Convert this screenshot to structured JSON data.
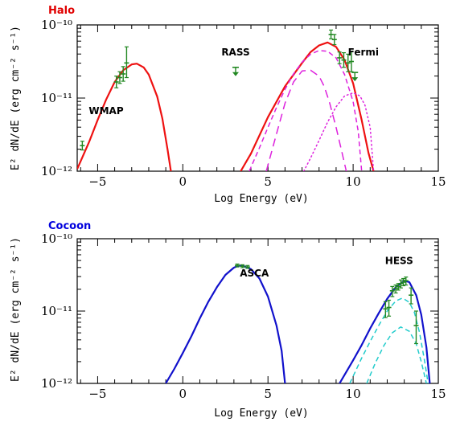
{
  "chart_data": [
    {
      "panel": "halo",
      "type": "line",
      "title": "Halo",
      "title_color": "#e00000",
      "xlabel": "Log Energy (eV)",
      "ylabel": "E² dN/dE (erg cm⁻² s⁻¹)",
      "xlim": [
        -6.2,
        15
      ],
      "ylim_log10": [
        -12,
        -10
      ],
      "yscale": "log",
      "x_ticks": [
        -5,
        0,
        5,
        10,
        15
      ],
      "y_ticks": [
        {
          "exp": -12,
          "label": "10⁻¹²"
        },
        {
          "exp": -11,
          "label": "10⁻¹¹"
        },
        {
          "exp": -10,
          "label": "10⁻¹⁰"
        }
      ],
      "annotations": [
        {
          "text": "WMAP",
          "x": -4.5,
          "logy": -11.22
        },
        {
          "text": "RASS",
          "x": 3.1,
          "logy": -10.42
        },
        {
          "text": "Fermi",
          "x": 10.6,
          "logy": -10.42
        }
      ],
      "series": [
        {
          "style": "solid",
          "color": "#ee1111",
          "width": 2.2,
          "x": [
            -6.2,
            -5.5,
            -5,
            -4.5,
            -4,
            -3.5,
            -3,
            -2.7,
            -2.3,
            -2,
            -1.5,
            -1.2,
            -0.9,
            -0.7
          ],
          "logy": [
            -11.97,
            -11.6,
            -11.3,
            -11.02,
            -10.78,
            -10.62,
            -10.54,
            -10.53,
            -10.58,
            -10.68,
            -10.98,
            -11.28,
            -11.7,
            -12.0
          ]
        },
        {
          "style": "solid",
          "color": "#ee1111",
          "width": 2.2,
          "x": [
            3.4,
            4,
            5,
            6,
            7,
            7.5,
            8,
            8.5,
            9,
            9.5,
            10,
            10.5,
            10.9,
            11.2
          ],
          "logy": [
            -12.0,
            -11.76,
            -11.26,
            -10.84,
            -10.52,
            -10.37,
            -10.28,
            -10.24,
            -10.3,
            -10.48,
            -10.8,
            -11.3,
            -11.75,
            -12.0
          ]
        },
        {
          "style": "longdash",
          "color": "#dd22dd",
          "width": 1.5,
          "x": [
            4.9,
            5.5,
            6,
            6.5,
            7,
            7.5,
            8,
            8.3,
            8.6,
            9,
            9.3,
            9.6
          ],
          "logy": [
            -12.0,
            -11.49,
            -11.07,
            -10.78,
            -10.63,
            -10.62,
            -10.7,
            -10.84,
            -11.05,
            -11.4,
            -11.7,
            -12.0
          ]
        },
        {
          "style": "dash",
          "color": "#dd22dd",
          "width": 1.5,
          "x": [
            3.9,
            4.5,
            5,
            5.5,
            6,
            6.5,
            7,
            7.5,
            8,
            8.5,
            9,
            9.5,
            10,
            10.3,
            10.5
          ],
          "logy": [
            -12.0,
            -11.68,
            -11.4,
            -11.13,
            -10.88,
            -10.67,
            -10.51,
            -10.4,
            -10.35,
            -10.36,
            -10.45,
            -10.68,
            -11.05,
            -11.46,
            -12.0
          ]
        },
        {
          "style": "dot",
          "color": "#dd22dd",
          "width": 1.5,
          "x": [
            7.1,
            7.5,
            8,
            8.5,
            9,
            9.5,
            10,
            10.4,
            10.7,
            11,
            11.2
          ],
          "logy": [
            -12.0,
            -11.82,
            -11.58,
            -11.33,
            -11.12,
            -10.97,
            -10.93,
            -10.97,
            -11.1,
            -11.4,
            -12.0
          ]
        }
      ],
      "data_points": [
        {
          "x": -5.9,
          "logy": -11.65,
          "err_lo": 0.06,
          "err_hi": 0.06
        },
        {
          "x": -3.9,
          "logy": -10.78,
          "err_lo": 0.08,
          "err_hi": 0.08
        },
        {
          "x": -3.7,
          "logy": -10.72,
          "err_lo": 0.08,
          "err_hi": 0.08
        },
        {
          "x": -3.5,
          "logy": -10.67,
          "err_lo": 0.1,
          "err_hi": 0.1
        },
        {
          "x": -3.3,
          "logy": -10.52,
          "err_lo": 0.2,
          "err_hi": 0.22
        },
        {
          "x": 8.7,
          "logy": -10.13,
          "err_lo": 0.06,
          "err_hi": 0.06
        },
        {
          "x": 8.9,
          "logy": -10.2,
          "err_lo": 0.07,
          "err_hi": 0.07
        },
        {
          "x": 9.2,
          "logy": -10.45,
          "err_lo": 0.08,
          "err_hi": 0.08
        },
        {
          "x": 9.45,
          "logy": -10.48,
          "err_lo": 0.1,
          "err_hi": 0.1
        },
        {
          "x": 9.7,
          "logy": -10.52,
          "err_lo": 0.12,
          "err_hi": 0.12
        },
        {
          "x": 9.9,
          "logy": -10.5,
          "err_lo": 0.14,
          "err_hi": 0.14
        }
      ],
      "upper_limits": [
        {
          "x": 3.1,
          "logy": -10.58
        },
        {
          "x": 10.1,
          "logy": -10.65
        }
      ]
    },
    {
      "panel": "cocoon",
      "type": "line",
      "title": "Cocoon",
      "title_color": "#0000dd",
      "xlabel": "Log Energy (eV)",
      "ylabel": "E² dN/dE (erg cm⁻² s⁻¹)",
      "xlim": [
        -6.2,
        15
      ],
      "ylim_log10": [
        -12,
        -10
      ],
      "yscale": "log",
      "x_ticks": [
        -5,
        0,
        5,
        10,
        15
      ],
      "y_ticks": [
        {
          "exp": -12,
          "label": "10⁻¹²"
        },
        {
          "exp": -11,
          "label": "10⁻¹¹"
        },
        {
          "exp": -10,
          "label": "10⁻¹⁰"
        }
      ],
      "annotations": [
        {
          "text": "ASCA",
          "x": 4.2,
          "logy": -10.52
        },
        {
          "text": "HESS",
          "x": 12.7,
          "logy": -10.35
        }
      ],
      "series": [
        {
          "style": "solid",
          "color": "#1111cc",
          "width": 2.2,
          "x": [
            -1.0,
            -0.5,
            0,
            0.5,
            1,
            1.5,
            2,
            2.5,
            3,
            3.3,
            3.6,
            4,
            4.5,
            5,
            5.5,
            5.8,
            6.0
          ],
          "logy": [
            -12.0,
            -11.8,
            -11.58,
            -11.35,
            -11.1,
            -10.87,
            -10.67,
            -10.5,
            -10.4,
            -10.37,
            -10.38,
            -10.42,
            -10.55,
            -10.8,
            -11.2,
            -11.55,
            -12.0
          ]
        },
        {
          "style": "solid",
          "color": "#1111cc",
          "width": 2.2,
          "x": [
            9.2,
            10,
            10.5,
            11,
            11.5,
            12,
            12.5,
            13,
            13.3,
            13.7,
            14,
            14.3,
            14.5
          ],
          "logy": [
            -12.0,
            -11.68,
            -11.47,
            -11.24,
            -11.03,
            -10.83,
            -10.67,
            -10.58,
            -10.6,
            -10.78,
            -11.05,
            -11.5,
            -12.0
          ]
        },
        {
          "style": "dash",
          "color": "#22cccc",
          "width": 1.5,
          "x": [
            9.8,
            10.5,
            11,
            11.5,
            12,
            12.5,
            12.9,
            13.3,
            13.6,
            13.9,
            14.2,
            14.4
          ],
          "logy": [
            -12.0,
            -11.65,
            -11.42,
            -11.2,
            -11.0,
            -10.86,
            -10.82,
            -10.88,
            -11.02,
            -11.3,
            -11.7,
            -12.0
          ]
        },
        {
          "style": "dash",
          "color": "#22cccc",
          "width": 1.5,
          "x": [
            10.8,
            11.3,
            11.8,
            12.3,
            12.8,
            13.3,
            13.7,
            14.0,
            14.3
          ],
          "logy": [
            -12.0,
            -11.72,
            -11.48,
            -11.3,
            -11.22,
            -11.28,
            -11.45,
            -11.7,
            -12.0
          ]
        }
      ],
      "data_points": [
        {
          "x": 3.2,
          "logy": -10.37,
          "err_lo": 0.02,
          "err_hi": 0.02
        },
        {
          "x": 3.5,
          "logy": -10.38,
          "err_lo": 0.02,
          "err_hi": 0.02
        },
        {
          "x": 3.8,
          "logy": -10.39,
          "err_lo": 0.02,
          "err_hi": 0.02
        },
        {
          "x": 11.9,
          "logy": -10.97,
          "err_lo": 0.12,
          "err_hi": 0.1
        },
        {
          "x": 12.1,
          "logy": -10.95,
          "err_lo": 0.12,
          "err_hi": 0.1
        },
        {
          "x": 12.3,
          "logy": -10.72,
          "err_lo": 0.08,
          "err_hi": 0.06
        },
        {
          "x": 12.5,
          "logy": -10.69,
          "err_lo": 0.06,
          "err_hi": 0.05
        },
        {
          "x": 12.65,
          "logy": -10.66,
          "err_lo": 0.05,
          "err_hi": 0.04
        },
        {
          "x": 12.8,
          "logy": -10.62,
          "err_lo": 0.06,
          "err_hi": 0.05
        },
        {
          "x": 12.95,
          "logy": -10.6,
          "err_lo": 0.05,
          "err_hi": 0.05
        },
        {
          "x": 13.1,
          "logy": -10.58,
          "err_lo": 0.06,
          "err_hi": 0.05
        },
        {
          "x": 13.4,
          "logy": -10.78,
          "err_lo": 0.12,
          "err_hi": 0.1
        },
        {
          "x": 13.7,
          "logy": -11.2,
          "err_lo": 0.25,
          "err_hi": 0.2
        }
      ],
      "upper_limits": []
    }
  ]
}
